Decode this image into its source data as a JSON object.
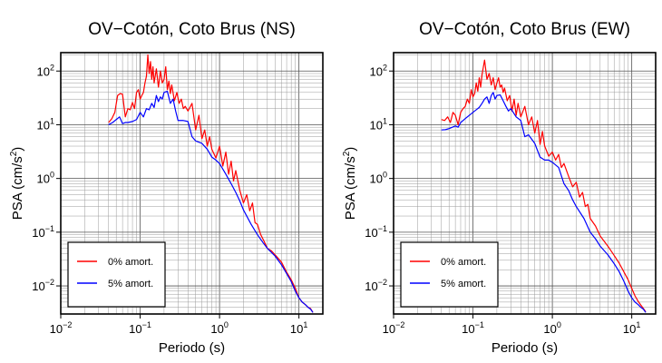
{
  "chart_data": [
    {
      "type": "line",
      "title": "OV−Cotón, Coto Brus (NS)",
      "xlabel": "Periodo (s)",
      "ylabel": "PSA (cm/s²)",
      "ylabel_base": "PSA (cm/s",
      "ylabel_sup": "2",
      "ylabel_close": ")",
      "x_scale": "log",
      "y_scale": "log",
      "xlim": [
        0.01,
        20
      ],
      "ylim": [
        0.003,
        220
      ],
      "x_ticks": [
        {
          "value": 0.01,
          "base": "10",
          "exp": "−2"
        },
        {
          "value": 0.1,
          "base": "10",
          "exp": "−1"
        },
        {
          "value": 1,
          "base": "10",
          "exp": "0"
        },
        {
          "value": 10,
          "base": "10",
          "exp": "1"
        }
      ],
      "y_ticks": [
        {
          "value": 0.01,
          "base": "10",
          "exp": "−2"
        },
        {
          "value": 0.1,
          "base": "10",
          "exp": "−1"
        },
        {
          "value": 1,
          "base": "10",
          "exp": "0"
        },
        {
          "value": 10,
          "base": "10",
          "exp": "1"
        },
        {
          "value": 100,
          "base": "10",
          "exp": "2"
        }
      ],
      "grid": true,
      "legend_position": "bottom-left",
      "series": [
        {
          "name": "0% amort.",
          "color": "#ff0000",
          "x": [
            0.04,
            0.044,
            0.048,
            0.052,
            0.056,
            0.06,
            0.065,
            0.07,
            0.075,
            0.08,
            0.085,
            0.09,
            0.095,
            0.1,
            0.105,
            0.11,
            0.115,
            0.12,
            0.125,
            0.13,
            0.135,
            0.14,
            0.145,
            0.15,
            0.16,
            0.17,
            0.18,
            0.19,
            0.2,
            0.21,
            0.22,
            0.23,
            0.24,
            0.25,
            0.27,
            0.29,
            0.31,
            0.33,
            0.35,
            0.37,
            0.4,
            0.45,
            0.5,
            0.55,
            0.6,
            0.65,
            0.7,
            0.75,
            0.8,
            0.9,
            1.0,
            1.1,
            1.2,
            1.3,
            1.4,
            1.5,
            1.6,
            1.8,
            2.0,
            2.2,
            2.4,
            2.6,
            2.8,
            3.0,
            3.3,
            3.6,
            4.0,
            4.5,
            5.0,
            6.0,
            7.0,
            8.0,
            9.0,
            10.0,
            11.0,
            12.0,
            13.0,
            14.0,
            15.0
          ],
          "y": [
            11,
            13,
            17,
            35,
            38,
            37,
            14,
            20,
            19,
            26,
            20,
            40,
            45,
            30,
            35,
            40,
            60,
            80,
            200,
            90,
            150,
            70,
            120,
            60,
            110,
            50,
            100,
            60,
            70,
            120,
            45,
            65,
            38,
            55,
            28,
            40,
            25,
            30,
            20,
            22,
            18,
            25,
            8,
            15,
            5.5,
            8,
            4,
            6,
            3.5,
            2.4,
            4,
            1.7,
            3.1,
            1.2,
            2.1,
            0.9,
            1.4,
            0.6,
            0.35,
            0.5,
            0.25,
            0.35,
            0.15,
            0.14,
            0.09,
            0.07,
            0.05,
            0.045,
            0.038,
            0.028,
            0.018,
            0.013,
            0.009,
            0.006,
            0.005,
            0.0045,
            0.004,
            0.0038,
            0.0032
          ]
        },
        {
          "name": "5% amort.",
          "color": "#0000ff",
          "x": [
            0.04,
            0.045,
            0.05,
            0.055,
            0.06,
            0.065,
            0.07,
            0.08,
            0.09,
            0.1,
            0.11,
            0.12,
            0.13,
            0.14,
            0.15,
            0.16,
            0.17,
            0.18,
            0.19,
            0.2,
            0.22,
            0.24,
            0.26,
            0.28,
            0.3,
            0.35,
            0.4,
            0.45,
            0.5,
            0.6,
            0.7,
            0.8,
            0.9,
            1.0,
            1.2,
            1.4,
            1.6,
            1.8,
            2.0,
            2.5,
            3.0,
            3.5,
            4.0,
            5.0,
            6.0,
            7.0,
            8.0,
            9.0,
            10.0,
            11.0,
            12.0,
            13.0,
            14.0,
            15.0
          ],
          "y": [
            10,
            11,
            12.5,
            14,
            10.5,
            11,
            11,
            11.5,
            12.5,
            17,
            14,
            20,
            19,
            25,
            21,
            35,
            27,
            33,
            30,
            40,
            42,
            25,
            30,
            18,
            12,
            12,
            11.5,
            6,
            5,
            4.5,
            3.5,
            2.5,
            2.2,
            1.9,
            1.2,
            0.8,
            0.55,
            0.38,
            0.26,
            0.14,
            0.09,
            0.065,
            0.05,
            0.036,
            0.025,
            0.017,
            0.012,
            0.008,
            0.006,
            0.005,
            0.0045,
            0.004,
            0.0037,
            0.0032
          ]
        }
      ]
    },
    {
      "type": "line",
      "title": "OV−Cotón, Coto Brus (EW)",
      "xlabel": "Periodo (s)",
      "ylabel": "PSA (cm/s²)",
      "ylabel_base": "PSA (cm/s",
      "ylabel_sup": "2",
      "ylabel_close": ")",
      "x_scale": "log",
      "y_scale": "log",
      "xlim": [
        0.01,
        20
      ],
      "ylim": [
        0.003,
        220
      ],
      "x_ticks": [
        {
          "value": 0.01,
          "base": "10",
          "exp": "−2"
        },
        {
          "value": 0.1,
          "base": "10",
          "exp": "−1"
        },
        {
          "value": 1,
          "base": "10",
          "exp": "0"
        },
        {
          "value": 10,
          "base": "10",
          "exp": "1"
        }
      ],
      "y_ticks": [
        {
          "value": 0.01,
          "base": "10",
          "exp": "−2"
        },
        {
          "value": 0.1,
          "base": "10",
          "exp": "−1"
        },
        {
          "value": 1,
          "base": "10",
          "exp": "0"
        },
        {
          "value": 10,
          "base": "10",
          "exp": "1"
        },
        {
          "value": 100,
          "base": "10",
          "exp": "2"
        }
      ],
      "grid": true,
      "legend_position": "bottom-left",
      "series": [
        {
          "name": "0% amort.",
          "color": "#ff0000",
          "x": [
            0.04,
            0.044,
            0.048,
            0.052,
            0.056,
            0.06,
            0.065,
            0.07,
            0.075,
            0.08,
            0.085,
            0.09,
            0.095,
            0.1,
            0.105,
            0.11,
            0.115,
            0.12,
            0.125,
            0.13,
            0.14,
            0.15,
            0.16,
            0.17,
            0.18,
            0.19,
            0.2,
            0.21,
            0.22,
            0.23,
            0.24,
            0.25,
            0.27,
            0.29,
            0.31,
            0.33,
            0.35,
            0.37,
            0.4,
            0.45,
            0.5,
            0.55,
            0.6,
            0.65,
            0.7,
            0.75,
            0.8,
            0.9,
            1.0,
            1.1,
            1.2,
            1.3,
            1.4,
            1.6,
            1.8,
            2.0,
            2.2,
            2.4,
            2.6,
            2.8,
            3.0,
            3.5,
            4.0,
            5.0,
            6.0,
            7.0,
            8.0,
            9.0,
            10.0,
            11.0,
            12.0,
            13.0,
            14.0,
            15.0
          ],
          "y": [
            12.5,
            12,
            14,
            11,
            17,
            15,
            10,
            17,
            20,
            22,
            30,
            25,
            45,
            33,
            38,
            60,
            42,
            75,
            50,
            85,
            160,
            70,
            90,
            55,
            75,
            45,
            60,
            75,
            50,
            55,
            40,
            48,
            28,
            35,
            18,
            30,
            15,
            25,
            14,
            22,
            10,
            14,
            7,
            12,
            4.3,
            7.5,
            4,
            2.6,
            3.1,
            2.2,
            2.8,
            1.6,
            1.9,
            1.1,
            0.7,
            0.85,
            0.45,
            0.55,
            0.3,
            0.33,
            0.18,
            0.13,
            0.085,
            0.055,
            0.037,
            0.026,
            0.018,
            0.013,
            0.009,
            0.0065,
            0.0052,
            0.0044,
            0.0038,
            0.0033
          ]
        },
        {
          "name": "5% amort.",
          "color": "#0000ff",
          "x": [
            0.04,
            0.045,
            0.05,
            0.055,
            0.06,
            0.065,
            0.07,
            0.08,
            0.09,
            0.1,
            0.11,
            0.12,
            0.13,
            0.14,
            0.15,
            0.16,
            0.17,
            0.18,
            0.19,
            0.2,
            0.22,
            0.24,
            0.26,
            0.28,
            0.3,
            0.35,
            0.4,
            0.45,
            0.5,
            0.6,
            0.7,
            0.8,
            0.9,
            1.0,
            1.2,
            1.4,
            1.6,
            1.8,
            2.0,
            2.5,
            3.0,
            3.5,
            4.0,
            5.0,
            6.0,
            7.0,
            8.0,
            9.0,
            10.0,
            11.0,
            12.0,
            13.0,
            14.0,
            15.0
          ],
          "y": [
            8,
            8.1,
            8.5,
            9,
            9.5,
            9,
            11,
            13,
            15,
            17,
            19,
            21,
            25,
            30,
            33,
            25,
            35,
            40,
            30,
            35,
            36,
            28,
            22,
            18,
            20,
            14,
            12,
            6,
            6.5,
            4.5,
            2.5,
            2.2,
            2.2,
            2.0,
            1.6,
            0.8,
            0.6,
            0.4,
            0.3,
            0.18,
            0.1,
            0.075,
            0.055,
            0.038,
            0.026,
            0.018,
            0.012,
            0.008,
            0.006,
            0.005,
            0.0045,
            0.004,
            0.0037,
            0.0032
          ]
        }
      ]
    }
  ]
}
